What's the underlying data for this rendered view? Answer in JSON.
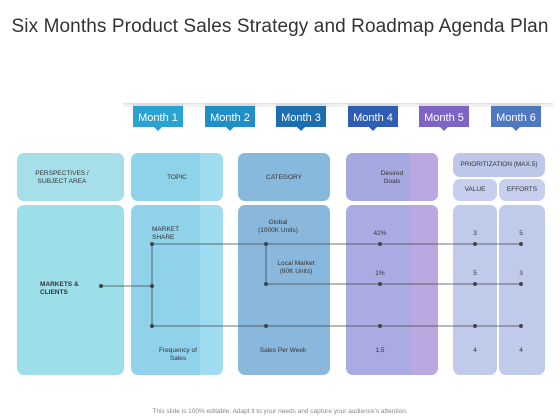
{
  "title": "Six Months Product Sales Strategy and Roadmap Agenda Plan",
  "months": [
    "Month 1",
    "Month 2",
    "Month 3",
    "Month 4",
    "Month 5",
    "Month 6"
  ],
  "month_colors": [
    "#2aa3d3",
    "#1f8fc8",
    "#1b6fb0",
    "#2f5db5",
    "#7e64c4",
    "#4e79c0"
  ],
  "column_colors": {
    "perspectives": "#9fdbe8",
    "topic": "#8fd0e8",
    "category": "#88b7dc",
    "goals": "#a9abe0",
    "prioritization": "#b8c5ea"
  },
  "headers": {
    "perspectives": "PERSPECTIVES /\nSUBJECT AREA",
    "topic": "TOPIC",
    "category": "CATEGORY",
    "goals": "Desired\nGoals",
    "prioritization": "PRIORITIZATION  (MAX.5)",
    "value": "VALUE",
    "efforts": "EFFORTS"
  },
  "rows": {
    "markets": "MARKETS &\nCLIENTS",
    "market_share": "MARKET\nSHARE",
    "global": "Global\n(1000K Units)",
    "local": "Local Market\n(80K Units)",
    "frequency": "Frequency of\nSales",
    "sales_per_week": "Sales Per Week"
  },
  "values": {
    "goal_global": "42%",
    "goal_local": "1%",
    "goal_sales": "1,5",
    "value_global": "3",
    "efforts_global": "5",
    "value_local": "5",
    "efforts_local": "3",
    "value_sales": "4",
    "efforts_sales": "4"
  },
  "footer": "This slide is 100% editable. Adapt it to your needs and capture your audience's attention."
}
